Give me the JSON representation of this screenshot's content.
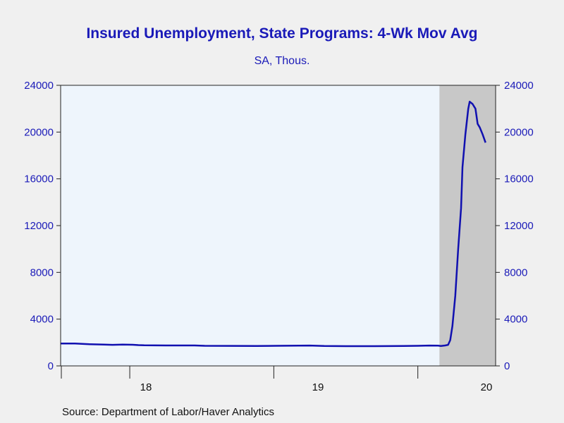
{
  "chart_data": {
    "type": "line",
    "title": "Insured Unemployment, State Programs: 4-Wk Mov Avg",
    "subtitle": "SA, Thous.",
    "source": "Source:  Department of Labor/Haver Analytics",
    "x_tick_labels": [
      "18",
      "19",
      "20"
    ],
    "y_ticks": [
      0,
      4000,
      8000,
      12000,
      16000,
      20000,
      24000
    ],
    "ylim": [
      0,
      24000
    ],
    "recession_shade": {
      "start": 2020.15,
      "end": 2020.54
    },
    "series": [
      {
        "color": "#1010b0",
        "points": [
          [
            2017.52,
            1920
          ],
          [
            2017.62,
            1920
          ],
          [
            2017.72,
            1850
          ],
          [
            2017.82,
            1830
          ],
          [
            2017.88,
            1800
          ],
          [
            2017.95,
            1830
          ],
          [
            2018.02,
            1810
          ],
          [
            2018.06,
            1780
          ],
          [
            2018.1,
            1760
          ],
          [
            2018.25,
            1750
          ],
          [
            2018.35,
            1750
          ],
          [
            2018.45,
            1750
          ],
          [
            2018.52,
            1720
          ],
          [
            2018.7,
            1710
          ],
          [
            2018.88,
            1700
          ],
          [
            2019.02,
            1720
          ],
          [
            2019.25,
            1740
          ],
          [
            2019.35,
            1700
          ],
          [
            2019.5,
            1690
          ],
          [
            2019.7,
            1690
          ],
          [
            2019.9,
            1700
          ],
          [
            2020.0,
            1720
          ],
          [
            2020.08,
            1740
          ],
          [
            2020.14,
            1730
          ],
          [
            2020.16,
            1700
          ],
          [
            2020.19,
            1750
          ],
          [
            2020.21,
            1800
          ],
          [
            2020.225,
            2200
          ],
          [
            2020.24,
            3400
          ],
          [
            2020.26,
            6000
          ],
          [
            2020.28,
            10000
          ],
          [
            2020.3,
            13500
          ],
          [
            2020.31,
            17000
          ],
          [
            2020.33,
            19800
          ],
          [
            2020.35,
            22000
          ],
          [
            2020.36,
            22600
          ],
          [
            2020.38,
            22400
          ],
          [
            2020.4,
            22000
          ],
          [
            2020.415,
            20700
          ],
          [
            2020.43,
            20400
          ],
          [
            2020.45,
            19800
          ],
          [
            2020.47,
            19100
          ]
        ]
      }
    ]
  }
}
